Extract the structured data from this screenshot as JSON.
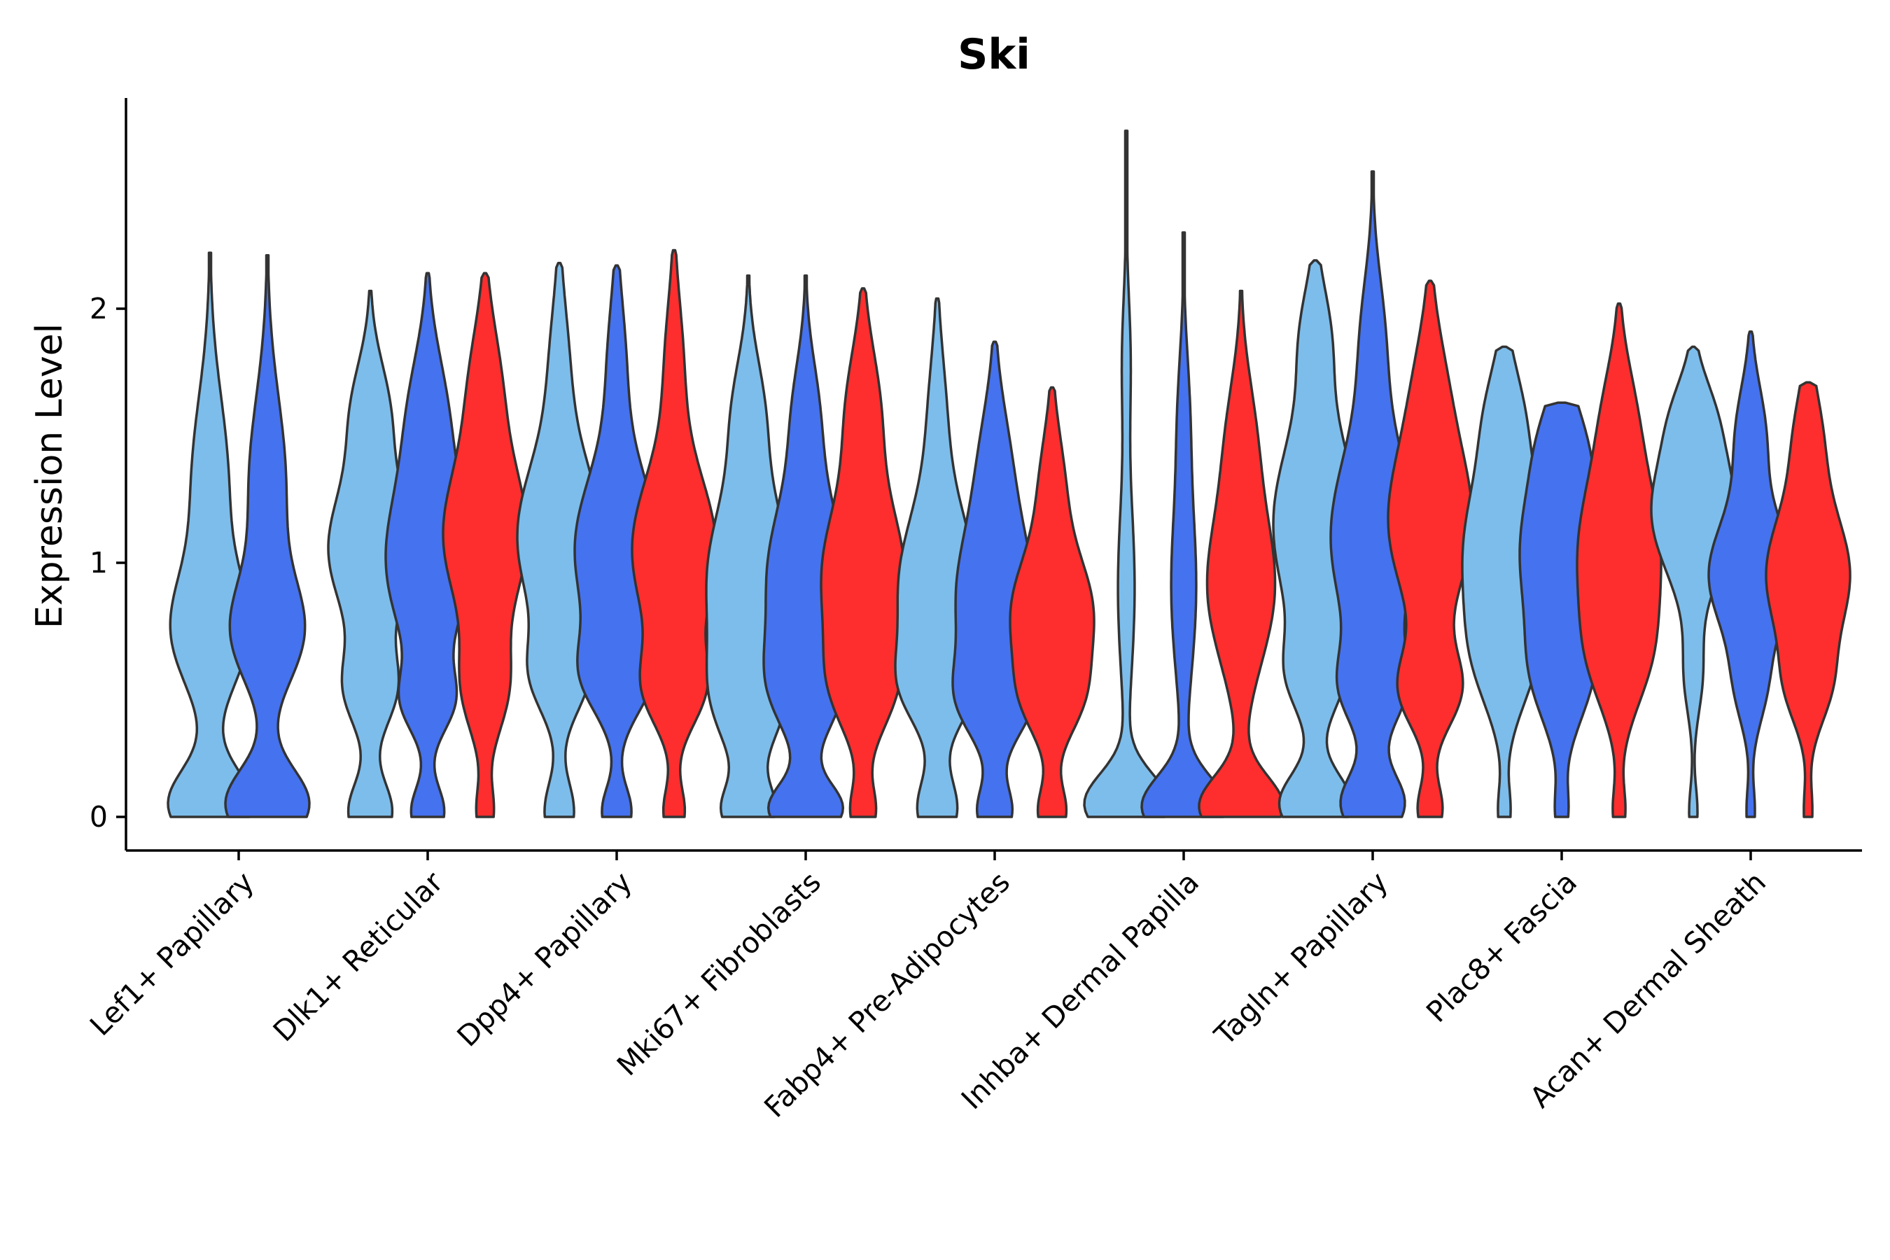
{
  "chart_data": {
    "type": "violin",
    "title": "Ski",
    "xlabel": "",
    "ylabel": "Expression Level",
    "ylim": [
      -0.14,
      2.85
    ],
    "yticks": [
      0,
      1,
      2
    ],
    "grid": false,
    "legend": "none",
    "colors": {
      "light_blue": "#7dbdeb",
      "blue": "#4572ee",
      "red": "#ff2e2e"
    },
    "groups": [
      {
        "name": "Lef1+ Papillary",
        "violins": [
          {
            "color": "light_blue",
            "max": 2.22,
            "peaks": [
              [
                0.05,
                0.9,
                0.14
              ],
              [
                0.72,
                0.75,
                0.22
              ],
              [
                1.3,
                0.4,
                0.35
              ]
            ]
          },
          {
            "color": "blue",
            "max": 2.21,
            "peaks": [
              [
                0.05,
                0.9,
                0.14
              ],
              [
                0.72,
                0.7,
                0.2
              ],
              [
                1.3,
                0.4,
                0.35
              ]
            ]
          }
        ]
      },
      {
        "name": "Dlk1+ Reticular",
        "violins": [
          {
            "color": "light_blue",
            "max": 2.07,
            "peaks": [
              [
                0.02,
                0.5,
                0.12
              ],
              [
                0.5,
                0.55,
                0.15
              ],
              [
                1.05,
                0.95,
                0.25
              ],
              [
                1.6,
                0.4,
                0.2
              ]
            ]
          },
          {
            "color": "blue",
            "max": 2.14,
            "peaks": [
              [
                0.02,
                0.4,
                0.1
              ],
              [
                0.45,
                0.5,
                0.12
              ],
              [
                1.0,
                1.0,
                0.3
              ],
              [
                1.6,
                0.4,
                0.25
              ]
            ]
          },
          {
            "color": "red",
            "max": 2.14,
            "peaks": [
              [
                0.02,
                0.2,
                0.1
              ],
              [
                0.5,
                0.5,
                0.18
              ],
              [
                1.1,
                1.0,
                0.28
              ],
              [
                1.7,
                0.35,
                0.25
              ]
            ]
          }
        ]
      },
      {
        "name": "Dpp4+ Papillary",
        "violins": [
          {
            "color": "light_blue",
            "max": 2.18,
            "peaks": [
              [
                0.02,
                0.35,
                0.12
              ],
              [
                0.55,
                0.55,
                0.15
              ],
              [
                1.1,
                1.0,
                0.3
              ],
              [
                1.8,
                0.2,
                0.25
              ]
            ]
          },
          {
            "color": "blue",
            "max": 2.17,
            "peaks": [
              [
                0.02,
                0.35,
                0.1
              ],
              [
                0.55,
                0.65,
                0.15
              ],
              [
                1.05,
                1.0,
                0.3
              ],
              [
                1.8,
                0.2,
                0.25
              ]
            ]
          },
          {
            "color": "red",
            "max": 2.23,
            "peaks": [
              [
                0.02,
                0.25,
                0.1
              ],
              [
                0.5,
                0.6,
                0.15
              ],
              [
                1.05,
                1.0,
                0.3
              ],
              [
                1.8,
                0.2,
                0.25
              ]
            ]
          }
        ]
      },
      {
        "name": "Mki67+ Fibroblasts",
        "violins": [
          {
            "color": "light_blue",
            "max": 2.13,
            "peaks": [
              [
                0.02,
                0.6,
                0.1
              ],
              [
                0.45,
                0.7,
                0.2
              ],
              [
                0.95,
                1.0,
                0.3
              ],
              [
                1.6,
                0.35,
                0.22
              ]
            ]
          },
          {
            "color": "blue",
            "max": 2.13,
            "peaks": [
              [
                0.03,
                0.95,
                0.1
              ],
              [
                0.5,
                0.7,
                0.18
              ],
              [
                0.95,
                1.0,
                0.3
              ],
              [
                1.6,
                0.3,
                0.22
              ]
            ]
          },
          {
            "color": "red",
            "max": 2.08,
            "peaks": [
              [
                0.02,
                0.3,
                0.1
              ],
              [
                0.5,
                0.6,
                0.18
              ],
              [
                0.95,
                1.0,
                0.28
              ],
              [
                1.6,
                0.4,
                0.25
              ]
            ]
          }
        ]
      },
      {
        "name": "Fabp4+ Pre-Adipocytes",
        "violins": [
          {
            "color": "light_blue",
            "max": 2.04,
            "peaks": [
              [
                0.03,
                0.5,
                0.12
              ],
              [
                0.5,
                0.6,
                0.15
              ],
              [
                0.9,
                1.0,
                0.3
              ],
              [
                1.6,
                0.2,
                0.25
              ]
            ]
          },
          {
            "color": "blue",
            "max": 1.87,
            "peaks": [
              [
                0.02,
                0.45,
                0.1
              ],
              [
                0.45,
                0.7,
                0.15
              ],
              [
                0.85,
                1.0,
                0.28
              ],
              [
                1.4,
                0.35,
                0.25
              ]
            ]
          },
          {
            "color": "red",
            "max": 1.69,
            "peaks": [
              [
                0.02,
                0.35,
                0.1
              ],
              [
                0.45,
                0.55,
                0.15
              ],
              [
                0.8,
                1.0,
                0.22
              ],
              [
                1.3,
                0.3,
                0.22
              ]
            ]
          }
        ]
      },
      {
        "name": "Inhba+ Dermal Papilla",
        "violins": [
          {
            "color": "light_blue",
            "max": 2.7,
            "peaks": [
              [
                0.05,
                1.0,
                0.12
              ],
              [
                0.9,
                0.2,
                0.35
              ],
              [
                1.8,
                0.1,
                0.25
              ]
            ]
          },
          {
            "color": "blue",
            "max": 2.3,
            "peaks": [
              [
                0.04,
                1.0,
                0.12
              ],
              [
                0.9,
                0.3,
                0.35
              ],
              [
                1.6,
                0.12,
                0.25
              ]
            ]
          },
          {
            "color": "red",
            "max": 2.07,
            "peaks": [
              [
                0.04,
                1.0,
                0.12
              ],
              [
                0.9,
                0.8,
                0.3
              ],
              [
                1.5,
                0.3,
                0.25
              ]
            ]
          }
        ]
      },
      {
        "name": "Tagln+ Papillary",
        "violins": [
          {
            "color": "light_blue",
            "max": 2.19,
            "peaks": [
              [
                0.05,
                0.85,
                0.12
              ],
              [
                0.55,
                0.5,
                0.15
              ],
              [
                1.15,
                1.0,
                0.35
              ],
              [
                1.9,
                0.3,
                0.2
              ]
            ]
          },
          {
            "color": "blue",
            "max": 2.54,
            "peaks": [
              [
                0.05,
                0.75,
                0.12
              ],
              [
                0.5,
                0.6,
                0.15
              ],
              [
                1.1,
                1.0,
                0.35
              ],
              [
                1.9,
                0.25,
                0.25
              ]
            ]
          },
          {
            "color": "red",
            "max": 2.11,
            "peaks": [
              [
                0.03,
                0.3,
                0.1
              ],
              [
                0.5,
                0.7,
                0.15
              ],
              [
                1.15,
                1.0,
                0.3
              ],
              [
                1.7,
                0.3,
                0.25
              ]
            ]
          }
        ]
      },
      {
        "name": "Plac8+ Fascia",
        "violins": [
          {
            "color": "light_blue",
            "max": 1.85,
            "peaks": [
              [
                0.02,
                0.15,
                0.1
              ],
              [
                0.6,
                0.5,
                0.2
              ],
              [
                1.05,
                1.0,
                0.3
              ],
              [
                1.6,
                0.35,
                0.2
              ]
            ]
          },
          {
            "color": "blue",
            "max": 1.63,
            "peaks": [
              [
                0.02,
                0.15,
                0.1
              ],
              [
                0.55,
                0.6,
                0.2
              ],
              [
                1.05,
                1.0,
                0.28
              ],
              [
                1.5,
                0.35,
                0.18
              ]
            ]
          },
          {
            "color": "red",
            "max": 2.02,
            "peaks": [
              [
                0.02,
                0.15,
                0.1
              ],
              [
                0.6,
                0.5,
                0.2
              ],
              [
                1.05,
                1.0,
                0.3
              ],
              [
                1.6,
                0.3,
                0.22
              ]
            ]
          }
        ]
      },
      {
        "name": "Acan+ Dermal Sheath",
        "violins": [
          {
            "color": "light_blue",
            "max": 1.85,
            "peaks": [
              [
                0.02,
                0.1,
                0.1
              ],
              [
                0.55,
                0.2,
                0.15
              ],
              [
                1.2,
                1.0,
                0.25
              ],
              [
                1.6,
                0.3,
                0.15
              ]
            ]
          },
          {
            "color": "blue",
            "max": 1.91,
            "peaks": [
              [
                0.02,
                0.1,
                0.1
              ],
              [
                0.5,
                0.3,
                0.15
              ],
              [
                0.95,
                1.0,
                0.22
              ],
              [
                1.5,
                0.35,
                0.2
              ]
            ]
          },
          {
            "color": "red",
            "max": 1.71,
            "peaks": [
              [
                0.02,
                0.1,
                0.1
              ],
              [
                0.5,
                0.4,
                0.15
              ],
              [
                0.95,
                1.0,
                0.25
              ],
              [
                1.5,
                0.3,
                0.2
              ]
            ]
          }
        ]
      }
    ]
  }
}
